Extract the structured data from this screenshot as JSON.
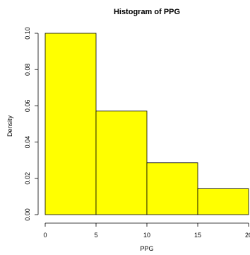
{
  "chart_data": {
    "type": "bar",
    "subtype": "histogram",
    "title": "Histogram of PPG",
    "xlabel": "PPG",
    "ylabel": "Density",
    "bins": [
      {
        "start": 0,
        "end": 5,
        "density": 0.1
      },
      {
        "start": 5,
        "end": 10,
        "density": 0.0571
      },
      {
        "start": 10,
        "end": 15,
        "density": 0.0286
      },
      {
        "start": 15,
        "end": 20,
        "density": 0.0143
      }
    ],
    "xlim": [
      0,
      20
    ],
    "ylim": [
      0,
      0.1
    ],
    "x_ticks": [
      0,
      5,
      10,
      15,
      20
    ],
    "x_tick_labels": [
      "0",
      "5",
      "10",
      "15",
      "20"
    ],
    "y_ticks": [
      0,
      0.02,
      0.04,
      0.06,
      0.08,
      0.1
    ],
    "y_tick_labels": [
      "0.00",
      "0.02",
      "0.04",
      "0.06",
      "0.08",
      "0.10"
    ],
    "bar_color": "#ffff00",
    "bar_border_color": "#000000",
    "grid": false,
    "legend": "none"
  }
}
